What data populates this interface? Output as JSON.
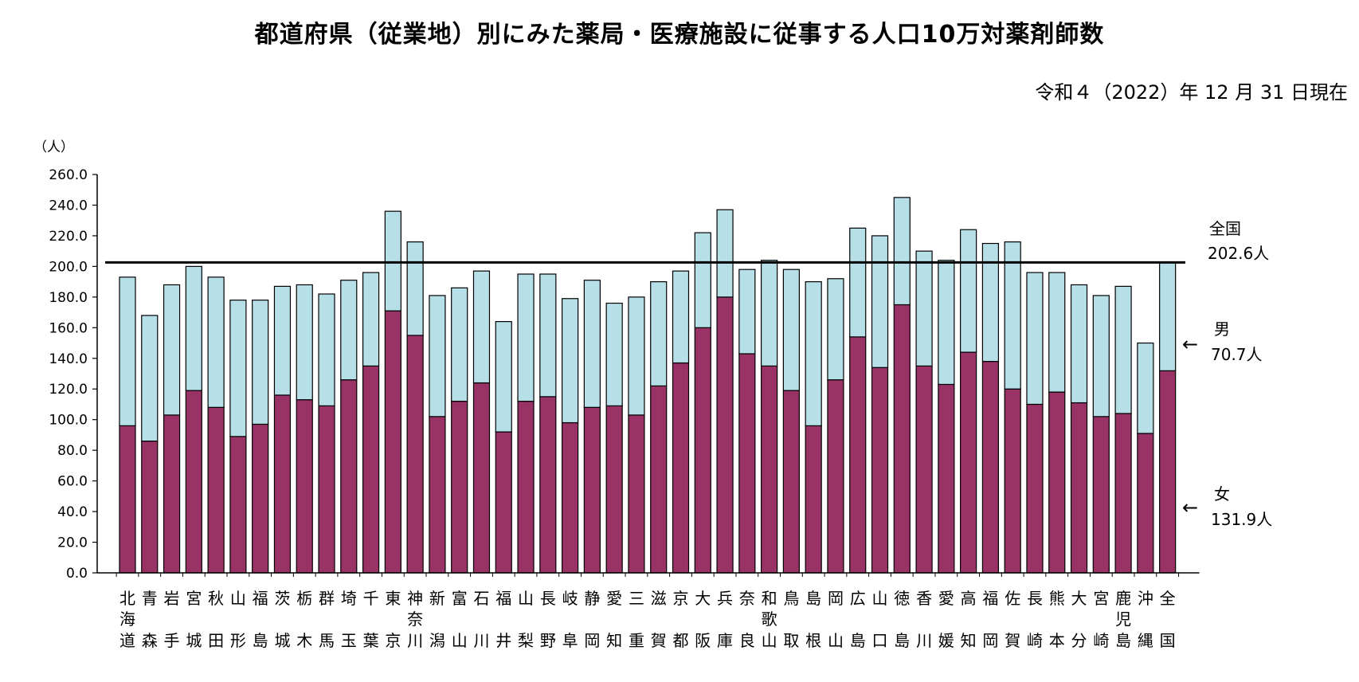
{
  "chart_data": {
    "type": "bar",
    "stacked": true,
    "title": "都道府県（従業地）別にみた薬局・医療施設に従事する人口10万対薬剤師数",
    "subtitle": "令和４（2022）年 12 月 31 日現在",
    "ylabel": "（人）",
    "ylim": [
      0,
      260
    ],
    "yticks": [
      "0.0",
      "20.0",
      "40.0",
      "60.0",
      "80.0",
      "100.0",
      "120.0",
      "140.0",
      "160.0",
      "180.0",
      "200.0",
      "220.0",
      "240.0",
      "260.0"
    ],
    "categories": [
      [
        "北",
        "海",
        "道"
      ],
      [
        "青",
        "",
        "森"
      ],
      [
        "岩",
        "",
        "手"
      ],
      [
        "宮",
        "",
        "城"
      ],
      [
        "秋",
        "",
        "田"
      ],
      [
        "山",
        "",
        "形"
      ],
      [
        "福",
        "",
        "島"
      ],
      [
        "茨",
        "",
        "城"
      ],
      [
        "栃",
        "",
        "木"
      ],
      [
        "群",
        "",
        "馬"
      ],
      [
        "埼",
        "",
        "玉"
      ],
      [
        "千",
        "",
        "葉"
      ],
      [
        "東",
        "",
        "京"
      ],
      [
        "神",
        "奈",
        "川"
      ],
      [
        "新",
        "",
        "潟"
      ],
      [
        "富",
        "",
        "山"
      ],
      [
        "石",
        "",
        "川"
      ],
      [
        "福",
        "",
        "井"
      ],
      [
        "山",
        "",
        "梨"
      ],
      [
        "長",
        "",
        "野"
      ],
      [
        "岐",
        "",
        "阜"
      ],
      [
        "静",
        "",
        "岡"
      ],
      [
        "愛",
        "",
        "知"
      ],
      [
        "三",
        "",
        "重"
      ],
      [
        "滋",
        "",
        "賀"
      ],
      [
        "京",
        "",
        "都"
      ],
      [
        "大",
        "",
        "阪"
      ],
      [
        "兵",
        "",
        "庫"
      ],
      [
        "奈",
        "",
        "良"
      ],
      [
        "和",
        "歌",
        "山"
      ],
      [
        "鳥",
        "",
        "取"
      ],
      [
        "島",
        "",
        "根"
      ],
      [
        "岡",
        "",
        "山"
      ],
      [
        "広",
        "",
        "島"
      ],
      [
        "山",
        "",
        "口"
      ],
      [
        "徳",
        "",
        "島"
      ],
      [
        "香",
        "",
        "川"
      ],
      [
        "愛",
        "",
        "媛"
      ],
      [
        "高",
        "",
        "知"
      ],
      [
        "福",
        "",
        "岡"
      ],
      [
        "佐",
        "",
        "賀"
      ],
      [
        "長",
        "",
        "崎"
      ],
      [
        "熊",
        "",
        "本"
      ],
      [
        "大",
        "",
        "分"
      ],
      [
        "宮",
        "",
        "崎"
      ],
      [
        "鹿",
        "児",
        "島"
      ],
      [
        "沖",
        "",
        "縄"
      ],
      [
        "全",
        "",
        "国"
      ]
    ],
    "series": [
      {
        "name": "女",
        "color": "#993366",
        "values": [
          96,
          86,
          103,
          119,
          108,
          89,
          97,
          116,
          113,
          109,
          126,
          135,
          171,
          155,
          102,
          112,
          124,
          92,
          112,
          115,
          98,
          108,
          109,
          103,
          122,
          137,
          160,
          180,
          143,
          135,
          119,
          96,
          126,
          154,
          134,
          175,
          135,
          123,
          144,
          138,
          120,
          110,
          118,
          111,
          102,
          104,
          91,
          131.9
        ]
      },
      {
        "name": "男",
        "color": "#b7dfe8",
        "values": [
          97,
          82,
          85,
          81,
          85,
          89,
          81,
          71,
          75,
          73,
          65,
          61,
          65,
          61,
          79,
          74,
          73,
          72,
          83,
          80,
          81,
          83,
          67,
          77,
          68,
          60,
          62,
          57,
          55,
          69,
          79,
          94,
          66,
          71,
          86,
          70,
          75,
          81,
          80,
          77,
          96,
          86,
          78,
          77,
          79,
          83,
          59,
          70.7
        ]
      }
    ],
    "reference_line": {
      "value": 202.6,
      "label_top": "全国",
      "label_bottom": "202.6人"
    },
    "annotations": [
      {
        "arrow": "←",
        "line1": "男",
        "line2": "70.7人"
      },
      {
        "arrow": "←",
        "line1": "女",
        "line2": "131.9人"
      }
    ]
  }
}
